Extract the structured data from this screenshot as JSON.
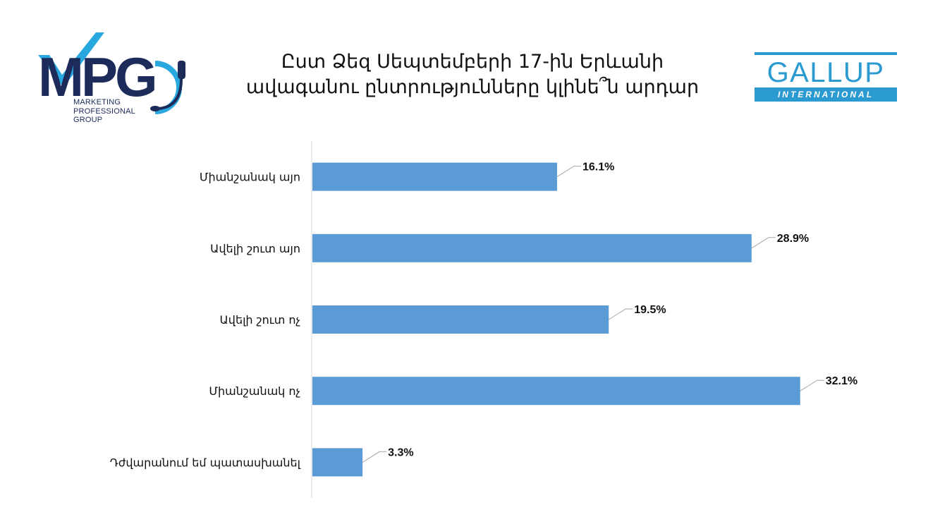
{
  "title": "Ըստ Ձեզ Սեպտեմբերի 17-ին Երևանի ավագանու ընտրությունները կլինե՞ն արդար",
  "logos": {
    "mpg": {
      "mark": "MPG",
      "subtitle": "MARKETING PROFESSIONAL GROUP"
    },
    "gallup": {
      "main": "GALLUP",
      "sub": "INTERNATIONAL"
    }
  },
  "colors": {
    "bar": "#5b9bd5",
    "mpg_dark": "#1d2b5b",
    "mpg_light": "#29a8e0",
    "gallup": "#2b9ad1"
  },
  "chart_data": {
    "type": "bar",
    "orientation": "horizontal",
    "categories": [
      "Միանշանակ այո",
      "Ավելի շուտ այո",
      "Ավելի շուտ ոչ",
      "Միանշանակ ոչ",
      "Դժվարանում եմ պատասխանել"
    ],
    "values": [
      16.1,
      28.9,
      19.5,
      32.1,
      3.3
    ],
    "labels": [
      "16.1%",
      "28.9%",
      "19.5%",
      "32.1%",
      "3.3%"
    ],
    "xlim": [
      0,
      40
    ],
    "grid": false,
    "legend": "none"
  }
}
